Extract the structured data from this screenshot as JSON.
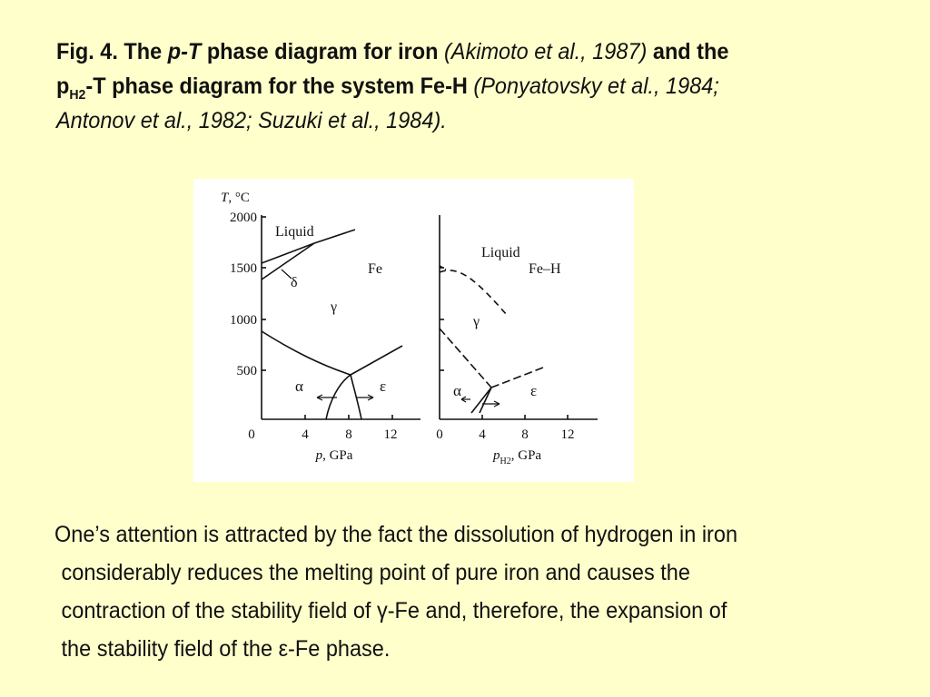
{
  "caption": {
    "fig_label": "Fig. 4. The ",
    "pt": "p-T",
    "phase_iron": " phase diagram for iron ",
    "cite1": "(Akimoto et al., 1987)",
    "and_the": " and the",
    "p": "p",
    "h2_sub": "H2",
    "system": "-T phase diagram for the system Fe-H ",
    "cite2a": "(Ponyatovsky et al., 1984;",
    "cite2b": "Antonov et al., 1982; Suzuki et al., 1984)."
  },
  "figure": {
    "y_axis_label_T": "T",
    "y_axis_label_unit": ", °C",
    "y_ticks": [
      "2000",
      "1500",
      "1000",
      "500"
    ],
    "left_panel": {
      "x_ticks": [
        "0",
        "4",
        "8",
        "12"
      ],
      "x_label_p": "p",
      "x_label_unit": ", GPa",
      "liquid": "Liquid",
      "delta": "δ",
      "fe": "Fe",
      "gamma": "γ",
      "alpha": "α",
      "epsilon": "ε"
    },
    "right_panel": {
      "x_ticks": [
        "0",
        "4",
        "8",
        "12"
      ],
      "x_label_p": "p",
      "x_label_sub": "H2",
      "x_label_unit": ", GPa",
      "liquid": "Liquid",
      "feh": "Fe–H",
      "gamma": "γ",
      "alpha": "α",
      "epsilon": "ε"
    }
  },
  "body": {
    "line1": "One’s attention is attracted by the fact the dissolution of hydrogen in iron",
    "line2": "considerably reduces the melting point of pure iron and causes the",
    "line3": "contraction of the stability field of γ-Fe and, therefore, the expansion of",
    "line4": "the stability field of the ε-Fe phase."
  }
}
